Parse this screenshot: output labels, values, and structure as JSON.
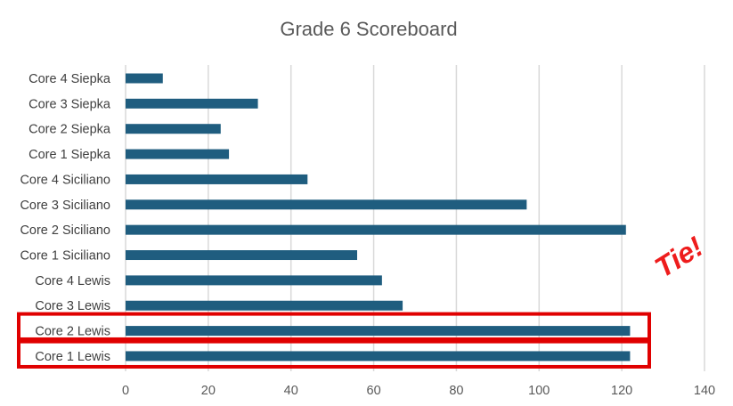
{
  "chart_data": {
    "type": "bar",
    "orientation": "horizontal",
    "title": "Grade 6 Scoreboard",
    "xlabel": "",
    "ylabel": "",
    "categories": [
      "Core 4 Siepka",
      "Core 3 Siepka",
      "Core 2 Siepka",
      "Core 1 Siepka",
      "Core 4 Siciliano",
      "Core 3 Siciliano",
      "Core 2 Siciliano",
      "Core 1 Siciliano",
      "Core 4 Lewis",
      "Core 3 Lewis",
      "Core 2 Lewis",
      "Core 1 Lewis"
    ],
    "values": [
      9,
      32,
      23,
      25,
      44,
      97,
      121,
      56,
      62,
      67,
      122,
      122
    ],
    "xlim": [
      0,
      140
    ],
    "xticks": [
      0,
      20,
      40,
      60,
      80,
      100,
      120,
      140
    ],
    "grid": true,
    "bar_color": "#1F5D7F",
    "highlight": {
      "categories": [
        "Core 2 Lewis",
        "Core 1 Lewis"
      ],
      "color": "#E00000"
    },
    "annotation": {
      "text": "Tie!",
      "color": "#EE1C1C"
    }
  }
}
